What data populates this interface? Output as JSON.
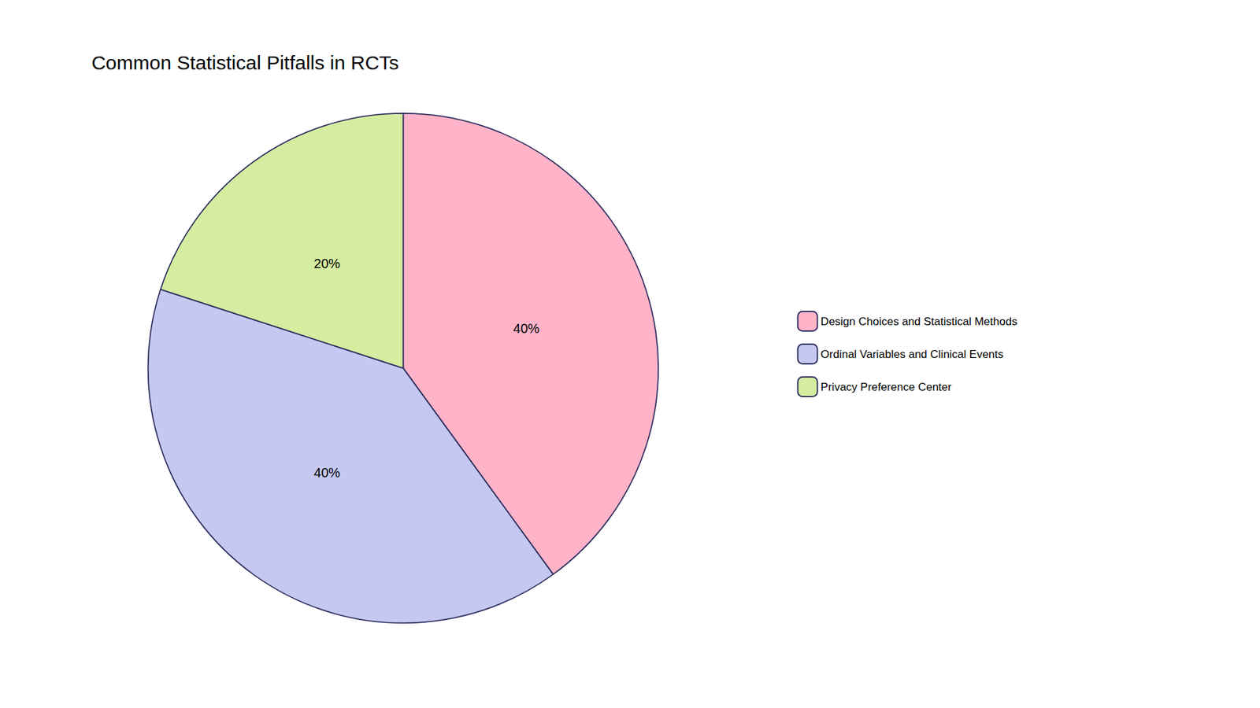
{
  "chart_data": {
    "type": "pie",
    "title": "Common Statistical Pitfalls in RCTs",
    "categories": [
      "Design Choices and Statistical Methods",
      "Ordinal Variables and Clinical Events",
      "Privacy Preference Center"
    ],
    "values": [
      40,
      40,
      20
    ],
    "value_labels": [
      "40%",
      "40%",
      "20%"
    ],
    "colors": [
      "#FFB3C8",
      "#C5C8F0",
      "#D4EDA0"
    ],
    "data_labels": true,
    "legend": "right"
  }
}
